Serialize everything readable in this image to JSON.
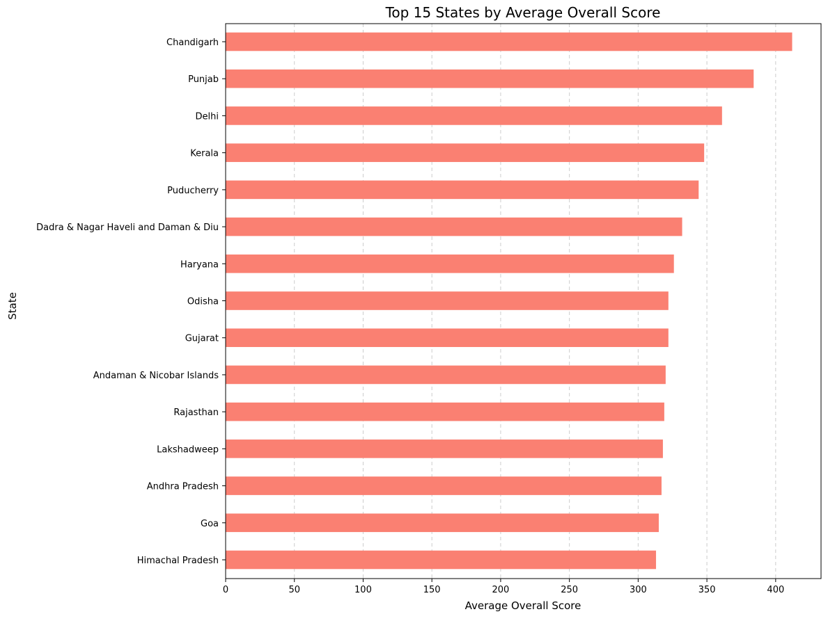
{
  "chart_data": {
    "type": "bar",
    "orientation": "horizontal",
    "title": "Top 15 States by Average Overall Score",
    "xlabel": "Average Overall Score",
    "ylabel": "State",
    "xlim": [
      0,
      433
    ],
    "xticks": [
      0,
      50,
      100,
      150,
      200,
      250,
      300,
      350,
      400
    ],
    "grid": "x-dashed",
    "bar_color": "#fa8072",
    "categories": [
      "Chandigarh",
      "Punjab",
      "Delhi",
      "Kerala",
      "Puducherry",
      "Dadra & Nagar Haveli and Daman & Diu",
      "Haryana",
      "Odisha",
      "Gujarat",
      "Andaman & Nicobar Islands",
      "Rajasthan",
      "Lakshadweep",
      "Andhra Pradesh",
      "Goa",
      "Himachal Pradesh"
    ],
    "values": [
      412,
      384,
      361,
      348,
      344,
      332,
      326,
      322,
      322,
      320,
      319,
      318,
      317,
      315,
      313
    ]
  }
}
